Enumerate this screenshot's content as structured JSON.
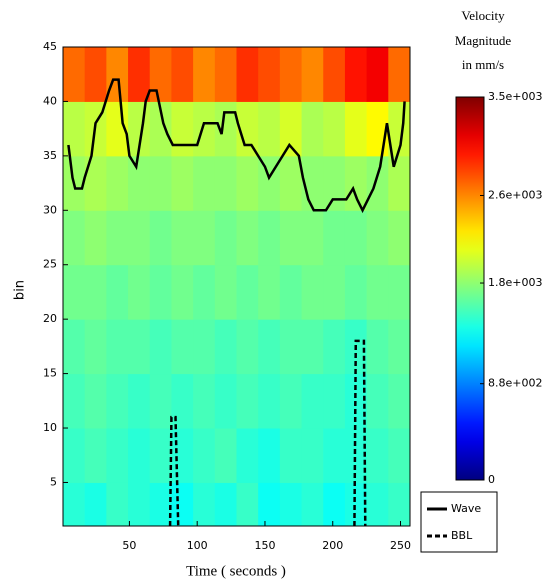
{
  "chart_data": {
    "type": "heatmap",
    "colorbar_title_lines": [
      "Velocity",
      "Magnitude",
      "in mm/s"
    ],
    "xlabel": "Time ( seconds )",
    "ylabel": "bin",
    "xlim": [
      1,
      257
    ],
    "ylim": [
      1,
      45
    ],
    "xticks": [
      50,
      100,
      150,
      200,
      250
    ],
    "yticks": [
      5,
      10,
      15,
      20,
      25,
      30,
      35,
      40,
      45
    ],
    "colormap": "jet",
    "clim": [
      0,
      3500
    ],
    "cticks": [
      {
        "value": 3500,
        "label": "3.5e+003"
      },
      {
        "value": 2600,
        "label": "2.6e+003"
      },
      {
        "value": 1800,
        "label": "1.8e+003"
      },
      {
        "value": 880,
        "label": "8.8e+002"
      },
      0
    ],
    "x_edges": [
      1,
      17,
      33,
      49,
      65,
      81,
      97,
      113,
      129,
      145,
      161,
      177,
      193,
      209,
      225,
      241,
      257
    ],
    "y_edges": [
      1,
      5,
      10,
      15,
      20,
      25,
      30,
      35,
      40,
      45
    ],
    "z": [
      [
        1450,
        1400,
        1500,
        1450,
        1400,
        1350,
        1450,
        1400,
        1500,
        1350,
        1400,
        1450,
        1350,
        1400,
        1450,
        1500
      ],
      [
        1500,
        1550,
        1500,
        1450,
        1500,
        1450,
        1500,
        1550,
        1450,
        1400,
        1500,
        1500,
        1450,
        1450,
        1500,
        1550
      ],
      [
        1550,
        1600,
        1550,
        1500,
        1550,
        1500,
        1550,
        1500,
        1550,
        1500,
        1550,
        1500,
        1500,
        1450,
        1550,
        1600
      ],
      [
        1600,
        1650,
        1600,
        1600,
        1550,
        1600,
        1600,
        1550,
        1600,
        1550,
        1600,
        1600,
        1550,
        1500,
        1600,
        1650
      ],
      [
        1700,
        1700,
        1650,
        1700,
        1650,
        1700,
        1650,
        1700,
        1650,
        1700,
        1650,
        1700,
        1700,
        1650,
        1700,
        1700
      ],
      [
        1750,
        1800,
        1750,
        1750,
        1700,
        1750,
        1750,
        1700,
        1750,
        1700,
        1750,
        1750,
        1700,
        1700,
        1750,
        1800
      ],
      [
        1850,
        1900,
        1850,
        1800,
        1800,
        1850,
        1800,
        1800,
        1850,
        1800,
        1850,
        1800,
        1800,
        1850,
        1800,
        1900
      ],
      [
        1950,
        2000,
        2100,
        1950,
        1900,
        2000,
        1950,
        1900,
        2000,
        1950,
        2050,
        1900,
        1950,
        2100,
        2200,
        2000
      ],
      [
        2700,
        2800,
        2600,
        2900,
        2700,
        2800,
        2600,
        2700,
        2900,
        2800,
        2700,
        2600,
        2800,
        3000,
        3100,
        2700
      ]
    ],
    "series": [
      {
        "name": "Wave",
        "color": "#000000",
        "dash": false,
        "x": [
          5,
          8,
          10,
          15,
          17,
          22,
          25,
          30,
          35,
          38,
          42,
          45,
          48,
          50,
          55,
          60,
          62,
          65,
          70,
          75,
          78,
          82,
          88,
          95,
          100,
          105,
          110,
          115,
          118,
          120,
          128,
          130,
          135,
          140,
          145,
          150,
          153,
          158,
          163,
          168,
          175,
          178,
          182,
          186,
          195,
          200,
          210,
          215,
          218,
          222,
          226,
          230,
          235,
          240,
          245,
          250,
          252,
          253
        ],
        "y": [
          36,
          33,
          32,
          32,
          33,
          35,
          38,
          39,
          41,
          42,
          42,
          38,
          37,
          35,
          34,
          38,
          40,
          41,
          41,
          38,
          37,
          36,
          36,
          36,
          36,
          38,
          38,
          38,
          37,
          39,
          39,
          38,
          36,
          36,
          35,
          34,
          33,
          34,
          35,
          36,
          35,
          33,
          31,
          30,
          30,
          31,
          31,
          32,
          31,
          30,
          31,
          32,
          34,
          38,
          34,
          36,
          38,
          40
        ]
      },
      {
        "name": "BBL",
        "color": "#000000",
        "dash": true,
        "x": [
          80,
          81,
          84,
          86,
          150,
          216,
          217,
          223,
          224
        ],
        "y": [
          1,
          11,
          11,
          1,
          null,
          1,
          18,
          18,
          1
        ]
      }
    ]
  }
}
